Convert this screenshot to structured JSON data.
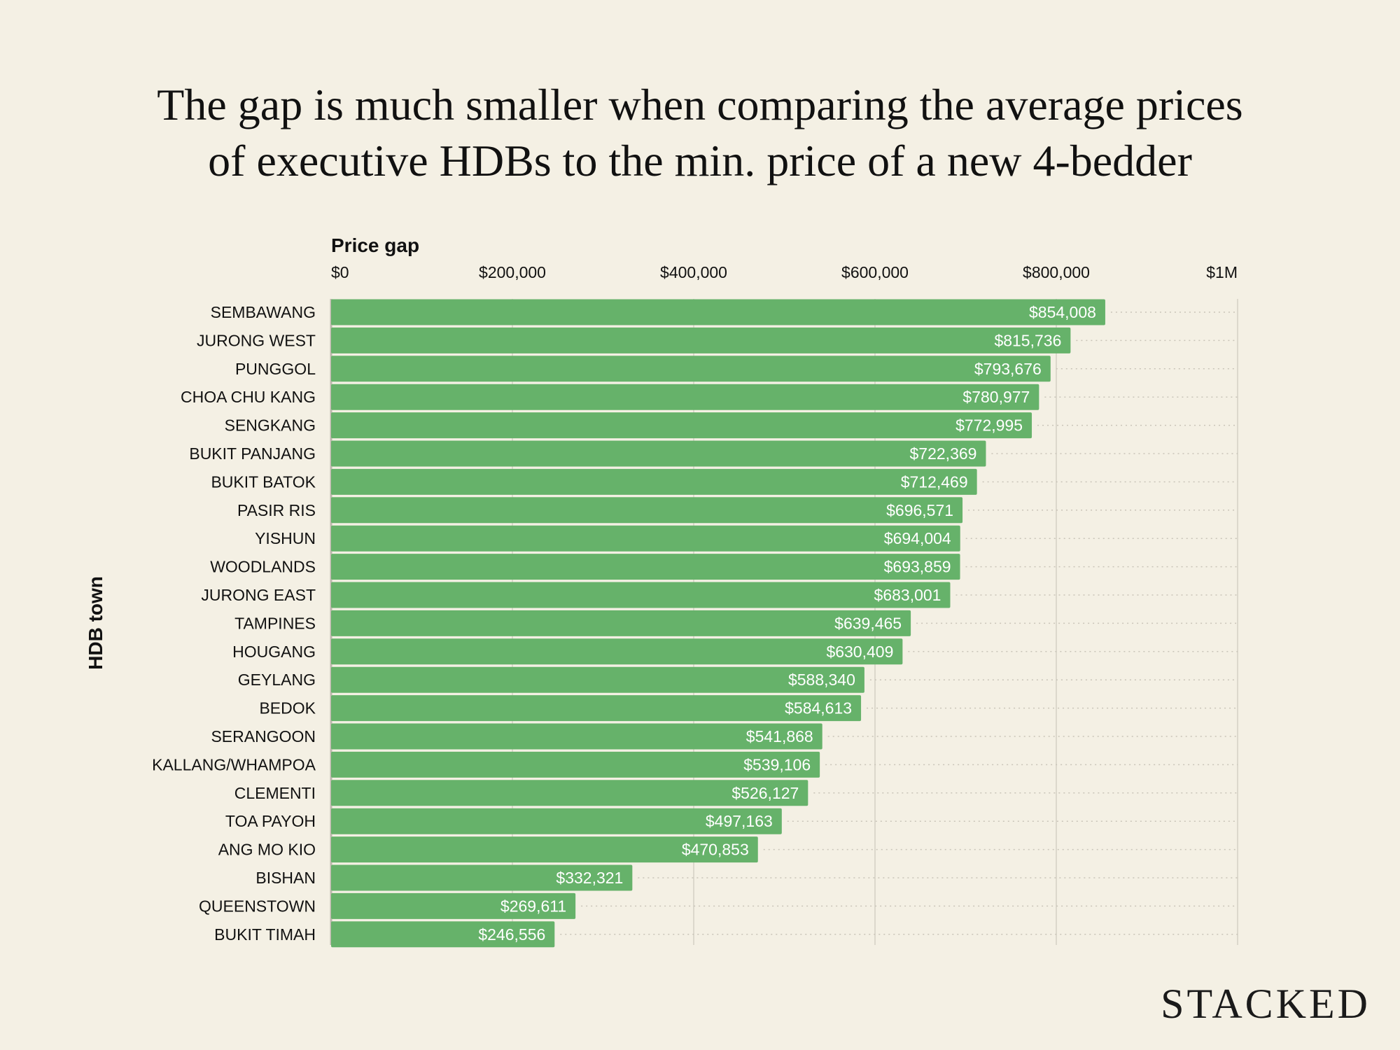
{
  "chart_data": {
    "type": "bar",
    "orientation": "horizontal",
    "title": "The gap is much smaller when comparing the average prices of executive HDBs to the min. price of a new 4-bedder",
    "title_lines": [
      "The gap is much smaller when comparing the average prices",
      "of executive HDBs to the min. price of a new 4-bedder"
    ],
    "xlabel": "Price gap",
    "ylabel": "HDB town",
    "xlim": [
      0,
      1000000
    ],
    "x_ticks": [
      0,
      200000,
      400000,
      600000,
      800000,
      1000000
    ],
    "x_tick_labels": [
      "$0",
      "$200,000",
      "$400,000",
      "$600,000",
      "$800,000",
      "$1M"
    ],
    "grid": true,
    "categories": [
      "SEMBAWANG",
      "JURONG WEST",
      "PUNGGOL",
      "CHOA CHU KANG",
      "SENGKANG",
      "BUKIT PANJANG",
      "BUKIT BATOK",
      "PASIR RIS",
      "YISHUN",
      "WOODLANDS",
      "JURONG EAST",
      "TAMPINES",
      "HOUGANG",
      "GEYLANG",
      "BEDOK",
      "SERANGOON",
      "KALLANG/WHAMPOA",
      "CLEMENTI",
      "TOA PAYOH",
      "ANG MO KIO",
      "BISHAN",
      "QUEENSTOWN",
      "BUKIT TIMAH"
    ],
    "values": [
      854008,
      815736,
      793676,
      780977,
      772995,
      722369,
      712469,
      696571,
      694004,
      693859,
      683001,
      639465,
      630409,
      588340,
      584613,
      541868,
      539106,
      526127,
      497163,
      470853,
      332321,
      269611,
      246556
    ],
    "data_labels": [
      "$854,008",
      "$815,736",
      "$793,676",
      "$780,977",
      "$772,995",
      "$722,369",
      "$712,469",
      "$696,571",
      "$694,004",
      "$693,859",
      "$683,001",
      "$639,465",
      "$630,409",
      "$588,340",
      "$584,613",
      "$541,868",
      "$539,106",
      "$526,127",
      "$497,163",
      "$470,853",
      "$332,321",
      "$269,611",
      "$246,556"
    ],
    "bar_color": "#66b26a",
    "background": "#f4f0e4"
  },
  "brand": "STACKED"
}
